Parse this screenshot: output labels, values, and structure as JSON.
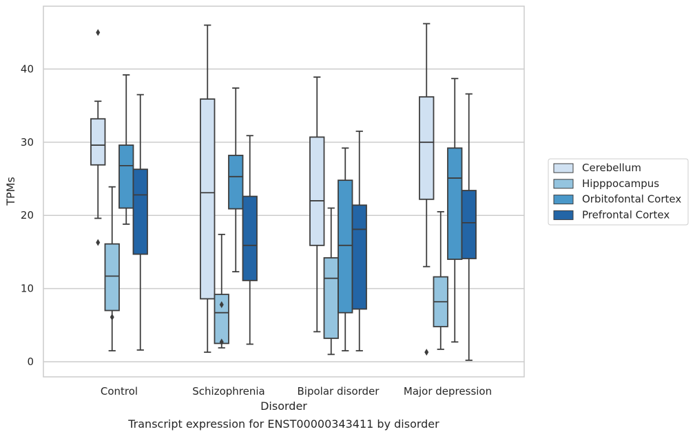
{
  "chart_data": {
    "type": "box",
    "xlabel": "Disorder",
    "ylabel": "TPMs",
    "caption": "Transcript expression for ENST00000343411 by disorder",
    "categories": [
      "Control",
      "Schizophrenia",
      "Bipolar disorder",
      "Major depression"
    ],
    "ylim": [
      -2,
      49
    ],
    "yticks": [
      0,
      10,
      20,
      30,
      40
    ],
    "grid": "horizontal",
    "legend_position": "right",
    "series": [
      {
        "name": "Cerebellum",
        "color": "#d0e1f2",
        "boxes": [
          {
            "whisker_low": 19.6,
            "q1": 26.9,
            "median": 29.6,
            "q3": 33.2,
            "whisker_high": 35.6,
            "outliers": [
              45.0,
              16.3
            ]
          },
          {
            "whisker_low": 1.3,
            "q1": 8.6,
            "median": 23.1,
            "q3": 35.9,
            "whisker_high": 46.0,
            "outliers": []
          },
          {
            "whisker_low": 4.1,
            "q1": 15.9,
            "median": 22.0,
            "q3": 30.7,
            "whisker_high": 38.9,
            "outliers": []
          },
          {
            "whisker_low": 13.0,
            "q1": 22.2,
            "median": 30.0,
            "q3": 36.2,
            "whisker_high": 46.2,
            "outliers": [
              1.3
            ]
          }
        ]
      },
      {
        "name": "Hipppocampus",
        "color": "#94c4df",
        "boxes": [
          {
            "whisker_low": 1.5,
            "q1": 7.0,
            "median": 11.7,
            "q3": 16.1,
            "whisker_high": 23.9,
            "outliers": [
              6.1
            ]
          },
          {
            "whisker_low": 1.9,
            "q1": 2.5,
            "median": 6.7,
            "q3": 9.2,
            "whisker_high": 17.4,
            "outliers": [
              7.8,
              2.7
            ]
          },
          {
            "whisker_low": 1.0,
            "q1": 3.2,
            "median": 11.4,
            "q3": 14.2,
            "whisker_high": 21.0,
            "outliers": []
          },
          {
            "whisker_low": 1.7,
            "q1": 4.8,
            "median": 8.2,
            "q3": 11.6,
            "whisker_high": 20.5,
            "outliers": []
          }
        ]
      },
      {
        "name": "Orbitofontal Cortex",
        "color": "#4a98c9",
        "boxes": [
          {
            "whisker_low": 18.8,
            "q1": 21.0,
            "median": 26.8,
            "q3": 29.6,
            "whisker_high": 39.2,
            "outliers": []
          },
          {
            "whisker_low": 12.3,
            "q1": 20.9,
            "median": 25.3,
            "q3": 28.2,
            "whisker_high": 37.4,
            "outliers": []
          },
          {
            "whisker_low": 1.5,
            "q1": 6.7,
            "median": 15.9,
            "q3": 24.8,
            "whisker_high": 29.2,
            "outliers": []
          },
          {
            "whisker_low": 2.7,
            "q1": 14.0,
            "median": 25.1,
            "q3": 29.2,
            "whisker_high": 38.7,
            "outliers": []
          }
        ]
      },
      {
        "name": "Prefrontal Cortex",
        "color": "#2365a6",
        "boxes": [
          {
            "whisker_low": 1.6,
            "q1": 14.7,
            "median": 22.8,
            "q3": 26.3,
            "whisker_high": 36.5,
            "outliers": []
          },
          {
            "whisker_low": 2.4,
            "q1": 11.1,
            "median": 15.9,
            "q3": 22.6,
            "whisker_high": 30.9,
            "outliers": []
          },
          {
            "whisker_low": 1.5,
            "q1": 7.2,
            "median": 18.1,
            "q3": 21.4,
            "whisker_high": 31.5,
            "outliers": []
          },
          {
            "whisker_low": 0.2,
            "q1": 14.1,
            "median": 19.0,
            "q3": 23.4,
            "whisker_high": 36.6,
            "outliers": []
          }
        ]
      }
    ]
  }
}
